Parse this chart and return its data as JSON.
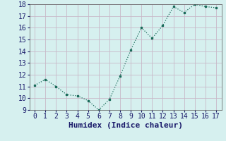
{
  "x": [
    0,
    1,
    2,
    3,
    4,
    5,
    6,
    7,
    8,
    9,
    10,
    11,
    12,
    13,
    14,
    15,
    16,
    17
  ],
  "y": [
    11.1,
    11.6,
    11.0,
    10.3,
    10.2,
    9.8,
    9.0,
    9.9,
    11.9,
    14.1,
    16.0,
    15.1,
    16.2,
    17.8,
    17.3,
    18.0,
    17.8,
    17.7
  ],
  "xlabel": "Humidex (Indice chaleur)",
  "ylim": [
    9,
    18
  ],
  "yticks": [
    9,
    10,
    11,
    12,
    13,
    14,
    15,
    16,
    17,
    18
  ],
  "xticks": [
    0,
    1,
    2,
    3,
    4,
    5,
    6,
    7,
    8,
    9,
    10,
    11,
    12,
    13,
    14,
    15,
    16,
    17
  ],
  "line_color": "#1a6b5a",
  "marker_color": "#1a6b5a",
  "bg_color": "#d6f0ef",
  "grid_color": "#c8b8c8",
  "xlabel_fontsize": 8,
  "tick_fontsize": 7
}
